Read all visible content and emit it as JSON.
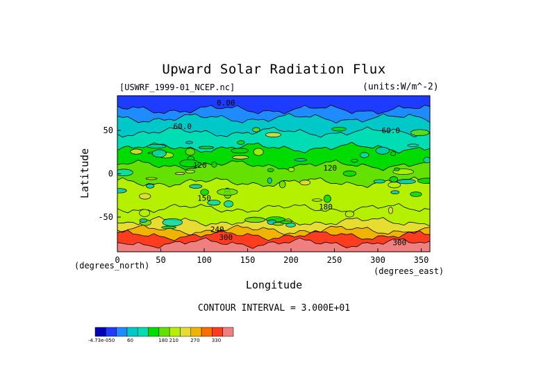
{
  "chart_data": {
    "type": "heatmap",
    "title": "Upward Solar Radiation Flux",
    "dataset": "[USWRF_1999-01_NCEP.nc]",
    "units": "(units:W/m^-2)",
    "xlabel": "Longitude",
    "ylabel": "Latitude",
    "x_units": "(degrees_east)",
    "y_units": "(degrees_north)",
    "xlim": [
      0,
      360
    ],
    "ylim": [
      -90,
      90
    ],
    "x_ticks": [
      0,
      50,
      100,
      150,
      200,
      250,
      300,
      350
    ],
    "y_ticks": [
      50,
      0,
      -50
    ],
    "contour_interval": "CONTOUR INTERVAL = 3.000E+01",
    "contour_labels": [
      {
        "text": "0.00",
        "lon": 125,
        "lat": 82
      },
      {
        "text": "60.0",
        "lon": 75,
        "lat": 55
      },
      {
        "text": "60.0",
        "lon": 315,
        "lat": 50
      },
      {
        "text": "120",
        "lon": 95,
        "lat": 10
      },
      {
        "text": "120",
        "lon": 245,
        "lat": 7
      },
      {
        "text": "150",
        "lon": 100,
        "lat": -28
      },
      {
        "text": "180",
        "lon": 240,
        "lat": -38
      },
      {
        "text": "240",
        "lon": 115,
        "lat": -64
      },
      {
        "text": "300",
        "lon": 125,
        "lat": -73
      },
      {
        "text": "300",
        "lon": 325,
        "lat": -79
      }
    ],
    "lat_bands": [
      {
        "lat_top": 90,
        "lat_bottom": 74,
        "value": 0
      },
      {
        "lat_top": 74,
        "lat_bottom": 64,
        "value": 30
      },
      {
        "lat_top": 64,
        "lat_bottom": 48,
        "value": 60
      },
      {
        "lat_top": 48,
        "lat_bottom": 30,
        "value": 90
      },
      {
        "lat_top": 30,
        "lat_bottom": 10,
        "value": 120
      },
      {
        "lat_top": 10,
        "lat_bottom": -10,
        "value": 150
      },
      {
        "lat_top": -10,
        "lat_bottom": -40,
        "value": 180
      },
      {
        "lat_top": -40,
        "lat_bottom": -55,
        "value": 180
      },
      {
        "lat_top": -55,
        "lat_bottom": -65,
        "value": 210
      },
      {
        "lat_top": -65,
        "lat_bottom": -71,
        "value": 240
      },
      {
        "lat_top": -71,
        "lat_bottom": -80,
        "value": 300
      },
      {
        "lat_top": -80,
        "lat_bottom": -90,
        "value": 330
      }
    ],
    "colorbar": {
      "colors": [
        "#0000b4",
        "#1e3cff",
        "#1e8cff",
        "#00c8c8",
        "#00dcb4",
        "#00dc00",
        "#64e100",
        "#b4f000",
        "#e6dc32",
        "#f0b400",
        "#fa6e00",
        "#ff3c1e",
        "#f08080"
      ],
      "labels": [
        "-4.73e-050",
        "60",
        "180",
        "210",
        "270",
        "330"
      ]
    }
  }
}
